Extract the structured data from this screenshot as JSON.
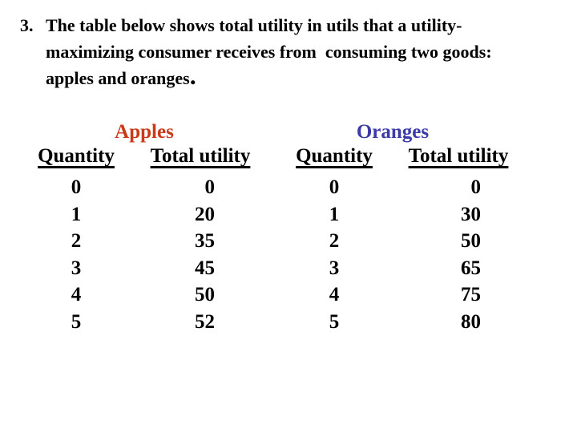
{
  "question": {
    "number": "3.",
    "lines": [
      "The table below shows total utility in utils that a utility-",
      "maximizing consumer receives from  consuming two goods:",
      "apples and oranges"
    ],
    "terminal_period": "."
  },
  "colors": {
    "background": "#FFFFFF",
    "text": "#000000",
    "apples_title": "#C83A1A",
    "oranges_title": "#3B3BA8"
  },
  "tables": [
    {
      "title": "Apples",
      "title_color": "#C83A1A",
      "columns": [
        "Quantity",
        "Total utility"
      ],
      "rows": [
        [
          "0",
          "0"
        ],
        [
          "1",
          "20"
        ],
        [
          "2",
          "35"
        ],
        [
          "3",
          "45"
        ],
        [
          "4",
          "50"
        ],
        [
          "5",
          "52"
        ]
      ]
    },
    {
      "title": "Oranges",
      "title_color": "#3B3BA8",
      "columns": [
        "Quantity",
        "Total utility"
      ],
      "rows": [
        [
          "0",
          "0"
        ],
        [
          "1",
          "30"
        ],
        [
          "2",
          "50"
        ],
        [
          "3",
          "65"
        ],
        [
          "4",
          "75"
        ],
        [
          "5",
          "80"
        ]
      ]
    }
  ]
}
